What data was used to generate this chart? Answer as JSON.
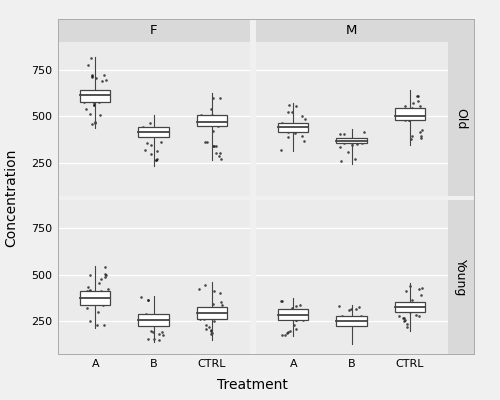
{
  "xlabel": "Treatment",
  "ylabel": "Concentration",
  "sex_labels": [
    "F",
    "M"
  ],
  "age_labels": [
    "Old",
    "Young"
  ],
  "treatment_labels": [
    "A",
    "B",
    "CTRL"
  ],
  "panel_bg": "#EBEBEB",
  "strip_bg": "#D9D9D9",
  "fig_bg": "#F0F0F0",
  "box_facecolor": "white",
  "box_edgecolor": "#444444",
  "median_color": "#444444",
  "whisker_color": "#444444",
  "jitter_color": "#111111",
  "jitter_size": 3.5,
  "jitter_alpha": 0.75,
  "panels": {
    "F_Old": {
      "A": {
        "q1": 580,
        "median": 615,
        "q3": 640,
        "whislo": 440,
        "whishi": 820,
        "n": 45
      },
      "B": {
        "q1": 390,
        "median": 415,
        "q3": 445,
        "whislo": 235,
        "whishi": 510,
        "n": 22
      },
      "CTRL": {
        "q1": 450,
        "median": 470,
        "q3": 510,
        "whislo": 265,
        "whishi": 625,
        "n": 42
      }
    },
    "M_Old": {
      "A": {
        "q1": 415,
        "median": 445,
        "q3": 465,
        "whislo": 315,
        "whishi": 570,
        "n": 28
      },
      "B": {
        "q1": 355,
        "median": 368,
        "q3": 385,
        "whislo": 245,
        "whishi": 435,
        "n": 18
      },
      "CTRL": {
        "q1": 480,
        "median": 500,
        "q3": 545,
        "whislo": 345,
        "whishi": 640,
        "n": 32
      }
    },
    "F_Young": {
      "A": {
        "q1": 340,
        "median": 375,
        "q3": 415,
        "whislo": 215,
        "whishi": 545,
        "n": 42
      },
      "B": {
        "q1": 225,
        "median": 255,
        "q3": 290,
        "whislo": 140,
        "whishi": 385,
        "n": 28
      },
      "CTRL": {
        "q1": 265,
        "median": 295,
        "q3": 325,
        "whislo": 150,
        "whishi": 460,
        "n": 55
      }
    },
    "M_Young": {
      "A": {
        "q1": 255,
        "median": 285,
        "q3": 315,
        "whislo": 170,
        "whishi": 375,
        "n": 28
      },
      "B": {
        "q1": 228,
        "median": 252,
        "q3": 278,
        "whislo": 130,
        "whishi": 340,
        "n": 24
      },
      "CTRL": {
        "q1": 300,
        "median": 325,
        "q3": 355,
        "whislo": 200,
        "whishi": 455,
        "n": 40
      }
    }
  },
  "ylim": [
    75,
    900
  ],
  "yticks": [
    250,
    500,
    750
  ]
}
